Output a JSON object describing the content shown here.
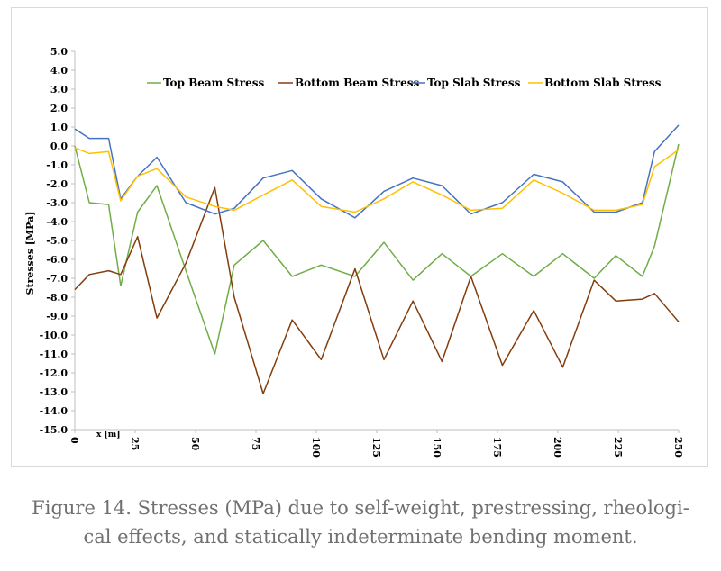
{
  "caption": {
    "line1": "Figure 14. Stresses (MPa) due to self-weight, prestressing, rheologi-",
    "line2": "cal effects, and statically indeterminate bending moment."
  },
  "chart_data": {
    "type": "line",
    "title": "",
    "ylabel": "Stresses  [MPa]",
    "xunit": "x [m]",
    "xlim": [
      0,
      250
    ],
    "ylim": [
      -15,
      5
    ],
    "x_ticks": [
      0,
      25,
      50,
      75,
      100,
      125,
      150,
      175,
      200,
      225,
      250
    ],
    "y_ticks": [
      "5.0",
      "4.0",
      "3.0",
      "2.0",
      "1.0",
      "0.0",
      "-1.0",
      "-2.0",
      "-3.0",
      "-4.0",
      "-5.0",
      "-6.0",
      "-7.0",
      "-8.0",
      "-9.0",
      "-10.0",
      "-11.0",
      "-12.0",
      "-13.0",
      "-14.0",
      "-15.0"
    ],
    "grid": false,
    "legend": "top",
    "series": [
      {
        "name": "Top Beam Stress",
        "color": "#70ad47",
        "x": [
          0,
          6,
          14,
          19,
          26,
          34,
          46,
          58,
          66,
          78,
          90,
          102,
          116,
          128,
          140,
          152,
          164,
          177,
          190,
          202,
          215,
          224,
          235,
          240,
          250
        ],
        "y": [
          0.0,
          -3.0,
          -3.1,
          -7.4,
          -3.5,
          -2.1,
          -6.6,
          -11.0,
          -6.3,
          -5.0,
          -6.9,
          -6.3,
          -6.9,
          -5.1,
          -7.1,
          -5.7,
          -6.9,
          -5.7,
          -6.9,
          -5.7,
          -7.0,
          -5.8,
          -6.9,
          -5.3,
          0.1
        ]
      },
      {
        "name": "Bottom Beam Stress",
        "color": "#843c0c",
        "x": [
          0,
          6,
          14,
          19,
          26,
          34,
          46,
          58,
          66,
          78,
          90,
          102,
          116,
          128,
          140,
          152,
          164,
          177,
          190,
          202,
          215,
          224,
          235,
          240,
          250
        ],
        "y": [
          -7.6,
          -6.8,
          -6.6,
          -6.8,
          -4.8,
          -9.1,
          -6.2,
          -2.2,
          -8.0,
          -13.1,
          -9.2,
          -11.3,
          -6.5,
          -11.3,
          -8.2,
          -11.4,
          -6.9,
          -11.6,
          -8.7,
          -11.7,
          -7.1,
          -8.2,
          -8.1,
          -7.8,
          -9.3
        ]
      },
      {
        "name": "Top Slab Stress",
        "color": "#4472c4",
        "x": [
          0,
          6,
          14,
          19,
          26,
          34,
          46,
          58,
          66,
          78,
          90,
          102,
          116,
          128,
          140,
          152,
          164,
          177,
          190,
          202,
          215,
          224,
          235,
          240,
          250
        ],
        "y": [
          0.9,
          0.4,
          0.4,
          -2.8,
          -1.6,
          -0.6,
          -3.0,
          -3.6,
          -3.3,
          -1.7,
          -1.3,
          -2.8,
          -3.8,
          -2.4,
          -1.7,
          -2.1,
          -3.6,
          -3.0,
          -1.5,
          -1.9,
          -3.5,
          -3.5,
          -3.0,
          -0.3,
          1.1
        ]
      },
      {
        "name": "Bottom Slab Stress",
        "color": "#ffc000",
        "x": [
          0,
          6,
          14,
          19,
          26,
          34,
          46,
          58,
          66,
          78,
          90,
          102,
          116,
          128,
          140,
          152,
          164,
          177,
          190,
          202,
          215,
          224,
          235,
          240,
          250
        ],
        "y": [
          -0.1,
          -0.4,
          -0.3,
          -2.9,
          -1.6,
          -1.2,
          -2.7,
          -3.2,
          -3.4,
          -2.6,
          -1.8,
          -3.2,
          -3.5,
          -2.8,
          -1.9,
          -2.6,
          -3.4,
          -3.3,
          -1.8,
          -2.5,
          -3.4,
          -3.4,
          -3.1,
          -1.1,
          -0.2
        ]
      }
    ]
  }
}
